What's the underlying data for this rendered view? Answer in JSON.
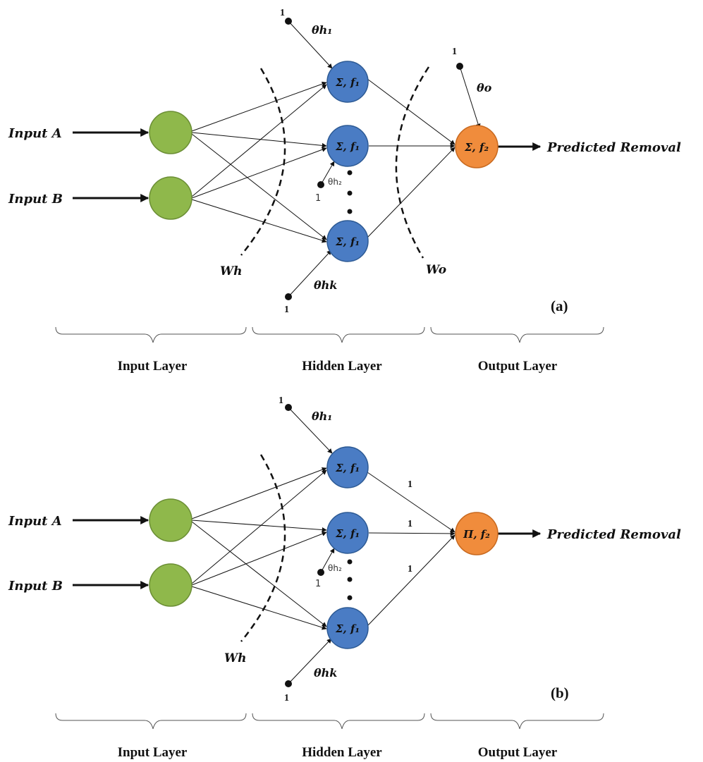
{
  "colors": {
    "input_node": "#8fb84b",
    "input_node_stroke": "#6b8e35",
    "hidden_node": "#4a7cc4",
    "hidden_node_stroke": "#2d5a94",
    "output_node": "#f08c3c",
    "output_node_stroke": "#c8691f"
  },
  "panels": [
    {
      "panel_label": "(a)",
      "inputs": [
        "Input A",
        "Input B"
      ],
      "hidden_node_label": "Σ, f₁",
      "output_node_label": "Σ, f₂",
      "output_label": "Predicted Removal",
      "bias_one": "1",
      "theta_h1": "θh₁",
      "theta_h2": "θh₂",
      "theta_hk": "θhk",
      "theta_o": "θo",
      "w_h": "Wh",
      "w_o": "Wo",
      "output_weights": [],
      "layer_labels": [
        "Input Layer",
        "Hidden Layer",
        "Output Layer"
      ]
    },
    {
      "panel_label": "(b)",
      "inputs": [
        "Input A",
        "Input B"
      ],
      "hidden_node_label": "Σ, f₁",
      "output_node_label": "Π, f₂",
      "output_label": "Predicted Removal",
      "bias_one": "1",
      "theta_h1": "θh₁",
      "theta_h2": "θh₂",
      "theta_hk": "θhk",
      "theta_o": "",
      "w_h": "Wh",
      "w_o": "",
      "output_weights": [
        "1",
        "1",
        "1"
      ],
      "layer_labels": [
        "Input Layer",
        "Hidden Layer",
        "Output Layer"
      ]
    }
  ]
}
